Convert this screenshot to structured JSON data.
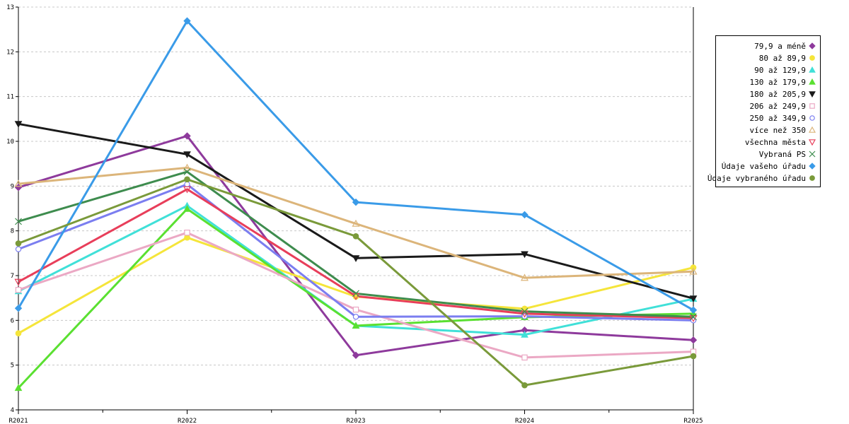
{
  "chart_data": {
    "type": "line",
    "categories": [
      "R2021",
      "R2022",
      "R2023",
      "R2024",
      "R2025"
    ],
    "ylim": [
      4,
      13
    ],
    "yticks": [
      "4",
      "5",
      "6",
      "7",
      "8",
      "9",
      "10",
      "11",
      "12",
      "13"
    ],
    "grid": true,
    "legend_position": "right",
    "series": [
      {
        "name": "79,9 a méně",
        "values": [
          8.97,
          10.12,
          5.22,
          5.78,
          5.56
        ],
        "color": "#8e3a9c",
        "marker": "diamond"
      },
      {
        "name": "80 až 89,9",
        "values": [
          5.71,
          7.85,
          6.53,
          6.26,
          7.18
        ],
        "color": "#f5e53a",
        "marker": "circle-filled"
      },
      {
        "name": "90 až 129,9",
        "values": [
          6.65,
          8.56,
          5.88,
          5.68,
          6.48
        ],
        "color": "#40e0d8",
        "marker": "triangle-up"
      },
      {
        "name": "130 až 179,9",
        "values": [
          4.49,
          8.49,
          5.88,
          6.07,
          6.15
        ],
        "color": "#5ae031",
        "marker": "triangle-up"
      },
      {
        "name": "180 až 205,9",
        "values": [
          10.39,
          9.71,
          7.39,
          7.48,
          6.49
        ],
        "color": "#1a1a1a",
        "marker": "triangle-down"
      },
      {
        "name": "206 až 249,9",
        "values": [
          6.68,
          7.96,
          6.24,
          5.17,
          5.3
        ],
        "color": "#eba8c4",
        "marker": "square-open"
      },
      {
        "name": "250 až 349,9",
        "values": [
          7.59,
          9.04,
          6.08,
          6.09,
          6.0
        ],
        "color": "#7b7ef0",
        "marker": "circle-open"
      },
      {
        "name": "více než 350",
        "values": [
          9.05,
          9.41,
          8.16,
          6.95,
          7.09
        ],
        "color": "#dcb57a",
        "marker": "triangle-open"
      },
      {
        "name": "všechna města",
        "values": [
          6.86,
          8.93,
          6.54,
          6.15,
          6.05
        ],
        "color": "#e83e5a",
        "marker": "triangle-down-open"
      },
      {
        "name": "Vybraná PS",
        "values": [
          8.21,
          9.32,
          6.6,
          6.2,
          6.08
        ],
        "color": "#3e8c4e",
        "marker": "cross"
      },
      {
        "name": "Údaje vašeho úřadu",
        "values": [
          6.27,
          12.69,
          8.64,
          8.36,
          6.23
        ],
        "color": "#3a9be8",
        "marker": "diamond"
      },
      {
        "name": "Údaje vybraného úřadu",
        "values": [
          7.72,
          9.15,
          7.88,
          4.55,
          5.2
        ],
        "color": "#7a9a3a",
        "marker": "circle-filled"
      }
    ]
  }
}
